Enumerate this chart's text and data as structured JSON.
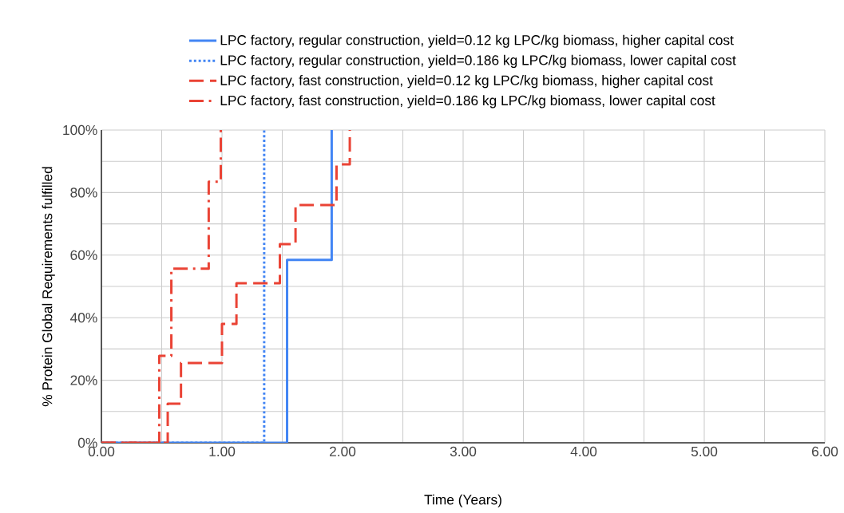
{
  "chart_data": {
    "type": "step",
    "xlabel": "Time (Years)",
    "ylabel": "% Protein Global Requirements fulfilled",
    "xlim": [
      0,
      6
    ],
    "ylim": [
      0,
      100
    ],
    "xticks": [
      {
        "value": 0,
        "label": "0.00"
      },
      {
        "value": 0.5,
        "label": null
      },
      {
        "value": 1,
        "label": "1.00"
      },
      {
        "value": 1.5,
        "label": null
      },
      {
        "value": 2,
        "label": "2.00"
      },
      {
        "value": 2.5,
        "label": null
      },
      {
        "value": 3,
        "label": "3.00"
      },
      {
        "value": 3.5,
        "label": null
      },
      {
        "value": 4,
        "label": "4.00"
      },
      {
        "value": 4.5,
        "label": null
      },
      {
        "value": 5,
        "label": "5.00"
      },
      {
        "value": 5.5,
        "label": null
      },
      {
        "value": 6,
        "label": "6.00"
      }
    ],
    "yticks": [
      {
        "value": 0,
        "label": "0%"
      },
      {
        "value": 10,
        "label": null
      },
      {
        "value": 20,
        "label": "20%"
      },
      {
        "value": 30,
        "label": null
      },
      {
        "value": 40,
        "label": "40%"
      },
      {
        "value": 50,
        "label": null
      },
      {
        "value": 60,
        "label": "60%"
      },
      {
        "value": 70,
        "label": null
      },
      {
        "value": 80,
        "label": "80%"
      },
      {
        "value": 90,
        "label": null
      },
      {
        "value": 100,
        "label": "100%"
      }
    ],
    "grid": true,
    "legend": "top",
    "marker": "none",
    "series": [
      {
        "name": "LPC factory, regular construction, yield=0.12 kg LPC/kg biomass, higher capital cost",
        "color": "#4285f4",
        "line_style": "solid",
        "x": [
          0,
          1.54,
          1.91
        ],
        "values": [
          0,
          58.5,
          100
        ]
      },
      {
        "name": "LPC factory, regular construction, yield=0.186 kg LPC/kg biomass, lower capital cost",
        "color": "#4285f4",
        "line_style": "dotted",
        "x": [
          0,
          1.35
        ],
        "values": [
          0,
          100
        ]
      },
      {
        "name": "LPC factory, fast construction, yield=0.12 kg LPC/kg biomass, higher capital cost",
        "color": "#ea4335",
        "line_style": "dashed",
        "x": [
          0,
          0.55,
          0.66,
          1.0,
          1.12,
          1.48,
          1.61,
          1.95,
          2.06
        ],
        "values": [
          0,
          12.5,
          25.5,
          38,
          51,
          63.5,
          76,
          89,
          100
        ]
      },
      {
        "name": "LPC factory, fast construction, yield=0.186 kg LPC/kg biomass, lower capital cost",
        "color": "#ea4335",
        "line_style": "dashdot",
        "x": [
          0,
          0.48,
          0.58,
          0.89,
          0.99
        ],
        "values": [
          0,
          27.8,
          55.7,
          83.5,
          100
        ]
      }
    ]
  }
}
